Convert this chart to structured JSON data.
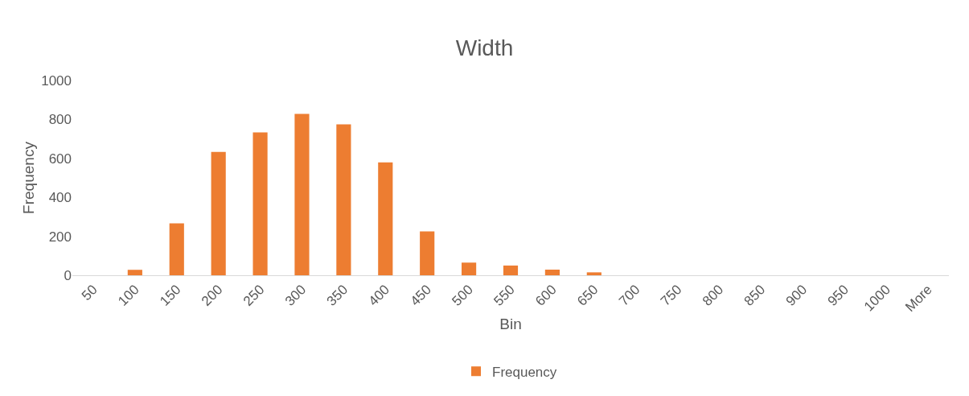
{
  "chart_data": {
    "type": "bar",
    "title": "Width",
    "xlabel": "Bin",
    "ylabel": "Frequency",
    "categories": [
      "50",
      "100",
      "150",
      "200",
      "250",
      "300",
      "350",
      "400",
      "450",
      "500",
      "550",
      "600",
      "650",
      "700",
      "750",
      "800",
      "850",
      "900",
      "950",
      "1000",
      "More"
    ],
    "series": [
      {
        "name": "Frequency",
        "color": "#ed7d31",
        "values": [
          0,
          28,
          267,
          633,
          733,
          828,
          775,
          580,
          225,
          65,
          50,
          29,
          15,
          0,
          0,
          0,
          0,
          0,
          0,
          0,
          0
        ]
      }
    ],
    "ylim": [
      0,
      1000
    ],
    "yticks": [
      0,
      200,
      400,
      600,
      800,
      1000
    ],
    "grid": false,
    "legend": "bottom"
  }
}
